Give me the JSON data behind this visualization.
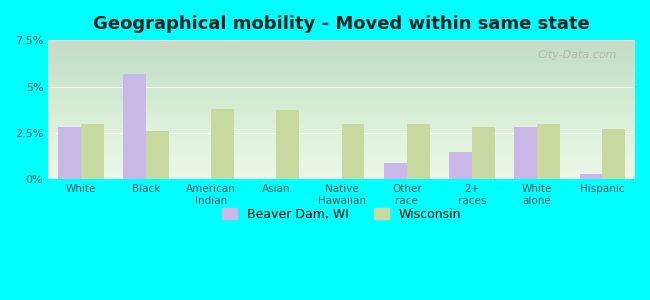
{
  "title": "Geographical mobility - Moved within same state",
  "categories": [
    "White",
    "Black",
    "American\nIndian",
    "Asian",
    "Native\nHawaiian",
    "Other\nrace",
    "2+\nraces",
    "White\nalone",
    "Hispanic"
  ],
  "beaver_dam": [
    2.8,
    5.7,
    0.0,
    0.0,
    0.0,
    0.9,
    1.5,
    2.8,
    0.3
  ],
  "wisconsin": [
    3.0,
    2.6,
    3.8,
    3.75,
    3.0,
    3.0,
    2.8,
    3.0,
    2.7
  ],
  "beaver_dam_color": "#c9b8e8",
  "wisconsin_color": "#c8d9a0",
  "background_plot": "#e8f5e5",
  "background_outer": "#00ffff",
  "ylim": [
    0,
    7.5
  ],
  "yticks": [
    0,
    2.5,
    5.0,
    7.5
  ],
  "ytick_labels": [
    "0%",
    "2.5%",
    "5%",
    "7.5%"
  ],
  "legend_beaver": "Beaver Dam, WI",
  "legend_wisconsin": "Wisconsin",
  "watermark": "City-Data.com",
  "bar_width": 0.35
}
